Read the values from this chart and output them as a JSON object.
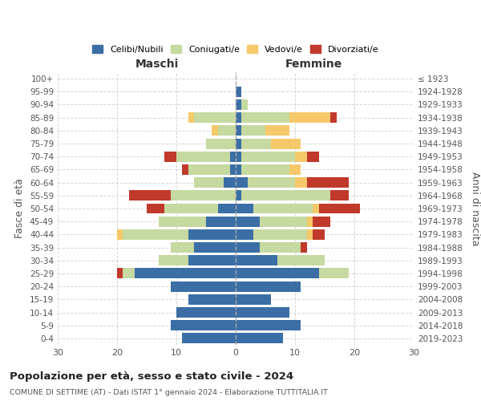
{
  "age_groups": [
    "0-4",
    "5-9",
    "10-14",
    "15-19",
    "20-24",
    "25-29",
    "30-34",
    "35-39",
    "40-44",
    "45-49",
    "50-54",
    "55-59",
    "60-64",
    "65-69",
    "70-74",
    "75-79",
    "80-84",
    "85-89",
    "90-94",
    "95-99",
    "100+"
  ],
  "birth_years": [
    "2019-2023",
    "2014-2018",
    "2009-2013",
    "2004-2008",
    "1999-2003",
    "1994-1998",
    "1989-1993",
    "1984-1988",
    "1979-1983",
    "1974-1978",
    "1969-1973",
    "1964-1968",
    "1959-1963",
    "1954-1958",
    "1949-1953",
    "1944-1948",
    "1939-1943",
    "1934-1938",
    "1929-1933",
    "1924-1928",
    "≤ 1923"
  ],
  "colors": {
    "celibi": "#3A6EA5",
    "coniugati": "#C5D9A0",
    "vedovi": "#F5C96A",
    "divorziati": "#C0392B"
  },
  "males": {
    "celibi": [
      9,
      11,
      10,
      8,
      11,
      17,
      8,
      7,
      8,
      5,
      3,
      0,
      2,
      1,
      1,
      0,
      0,
      0,
      0,
      0,
      0
    ],
    "coniugati": [
      0,
      0,
      0,
      0,
      0,
      2,
      5,
      4,
      11,
      8,
      9,
      11,
      5,
      7,
      9,
      5,
      3,
      7,
      0,
      0,
      0
    ],
    "vedovi": [
      0,
      0,
      0,
      0,
      0,
      0,
      0,
      0,
      1,
      0,
      0,
      0,
      0,
      0,
      0,
      0,
      1,
      1,
      0,
      0,
      0
    ],
    "divorziati": [
      0,
      0,
      0,
      0,
      0,
      1,
      0,
      0,
      0,
      0,
      3,
      7,
      0,
      1,
      2,
      0,
      0,
      0,
      0,
      0,
      0
    ]
  },
  "females": {
    "celibi": [
      8,
      11,
      9,
      6,
      11,
      14,
      7,
      4,
      3,
      4,
      3,
      1,
      2,
      1,
      1,
      1,
      1,
      1,
      1,
      1,
      0
    ],
    "coniugati": [
      0,
      0,
      0,
      0,
      0,
      5,
      8,
      7,
      9,
      8,
      10,
      15,
      8,
      8,
      9,
      5,
      4,
      8,
      1,
      0,
      0
    ],
    "vedovi": [
      0,
      0,
      0,
      0,
      0,
      0,
      0,
      0,
      1,
      1,
      1,
      0,
      2,
      2,
      2,
      5,
      4,
      7,
      0,
      0,
      0
    ],
    "divorziati": [
      0,
      0,
      0,
      0,
      0,
      0,
      0,
      1,
      2,
      3,
      7,
      3,
      7,
      0,
      2,
      0,
      0,
      1,
      0,
      0,
      0
    ]
  },
  "title": "Popolazione per età, sesso e stato civile - 2024",
  "subtitle": "COMUNE DI SETTIME (AT) - Dati ISTAT 1° gennaio 2024 - Elaborazione TUTTITALIA.IT",
  "xlabel_left": "Maschi",
  "xlabel_right": "Femmine",
  "ylabel_left": "Fasce di età",
  "ylabel_right": "Anni di nascita",
  "xlim": 30,
  "legend_labels": [
    "Celibi/Nubili",
    "Coniugati/e",
    "Vedovi/e",
    "Divorziati/e"
  ],
  "background_color": "#ffffff",
  "grid_color": "#cccccc"
}
